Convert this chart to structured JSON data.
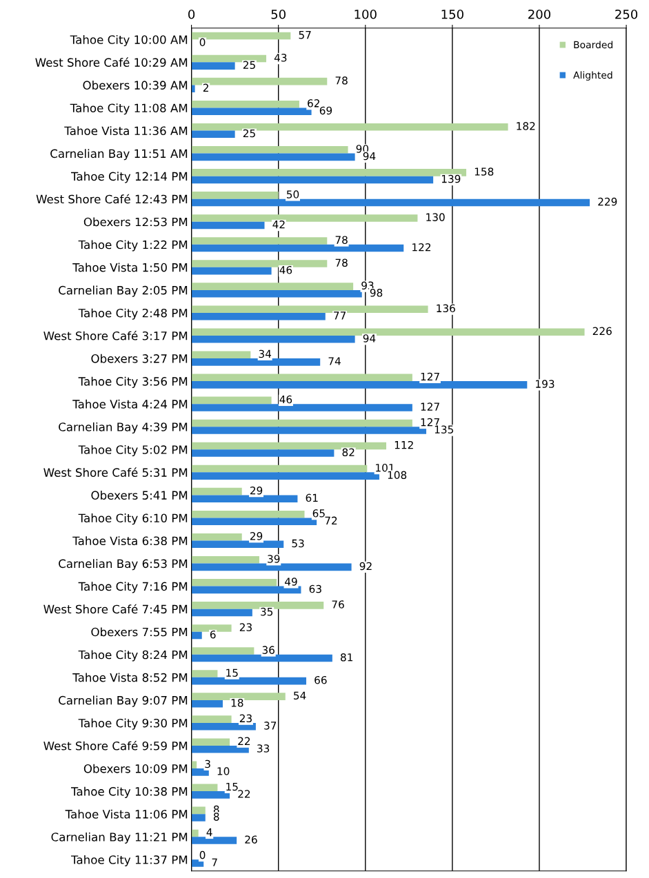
{
  "chart_data": {
    "type": "bar",
    "orientation": "horizontal",
    "categories": [
      "Tahoe City 10:00 AM",
      "West Shore Café 10:29 AM",
      "Obexers 10:39 AM",
      "Tahoe City 11:08 AM",
      "Tahoe Vista 11:36 AM",
      "Carnelian Bay 11:51 AM",
      "Tahoe City 12:14 PM",
      "West Shore Café 12:43 PM",
      "Obexers 12:53 PM",
      "Tahoe City 1:22 PM",
      "Tahoe Vista 1:50 PM",
      "Carnelian Bay 2:05 PM",
      "Tahoe City 2:48 PM",
      "West Shore Café 3:17 PM",
      "Obexers 3:27 PM",
      "Tahoe City 3:56 PM",
      "Tahoe Vista 4:24 PM",
      "Carnelian Bay 4:39 PM",
      "Tahoe City 5:02 PM",
      "West Shore Café 5:31 PM",
      "Obexers 5:41 PM",
      "Tahoe City 6:10 PM",
      "Tahoe Vista 6:38 PM",
      "Carnelian Bay 6:53 PM",
      "Tahoe City 7:16 PM",
      "West Shore Café 7:45 PM",
      "Obexers 7:55 PM",
      "Tahoe City 8:24 PM",
      "Tahoe Vista 8:52 PM",
      "Carnelian Bay 9:07 PM",
      "Tahoe City 9:30 PM",
      "West Shore Café 9:59 PM",
      "Obexers 10:09 PM",
      "Tahoe City 10:38 PM",
      "Tahoe Vista 11:06 PM",
      "Carnelian Bay 11:21 PM",
      "Tahoe City 11:37 PM"
    ],
    "series": [
      {
        "name": "Boarded",
        "color": "#b3d69c",
        "values": [
          57,
          43,
          78,
          62,
          182,
          90,
          158,
          50,
          130,
          78,
          78,
          93,
          136,
          226,
          34,
          127,
          46,
          127,
          112,
          101,
          29,
          65,
          29,
          39,
          49,
          76,
          23,
          36,
          15,
          54,
          23,
          22,
          3,
          15,
          8,
          4,
          0
        ]
      },
      {
        "name": "Alighted",
        "color": "#2a7fd8",
        "values": [
          0,
          25,
          2,
          69,
          25,
          94,
          139,
          229,
          42,
          122,
          46,
          98,
          77,
          94,
          74,
          193,
          127,
          135,
          82,
          108,
          61,
          72,
          53,
          92,
          63,
          35,
          6,
          81,
          66,
          18,
          37,
          33,
          10,
          22,
          8,
          26,
          7
        ]
      }
    ],
    "xlim": [
      0,
      250
    ],
    "xticks": [
      0,
      50,
      100,
      150,
      200,
      250
    ],
    "grid": "x",
    "legend": "top right",
    "data_labels": true
  }
}
